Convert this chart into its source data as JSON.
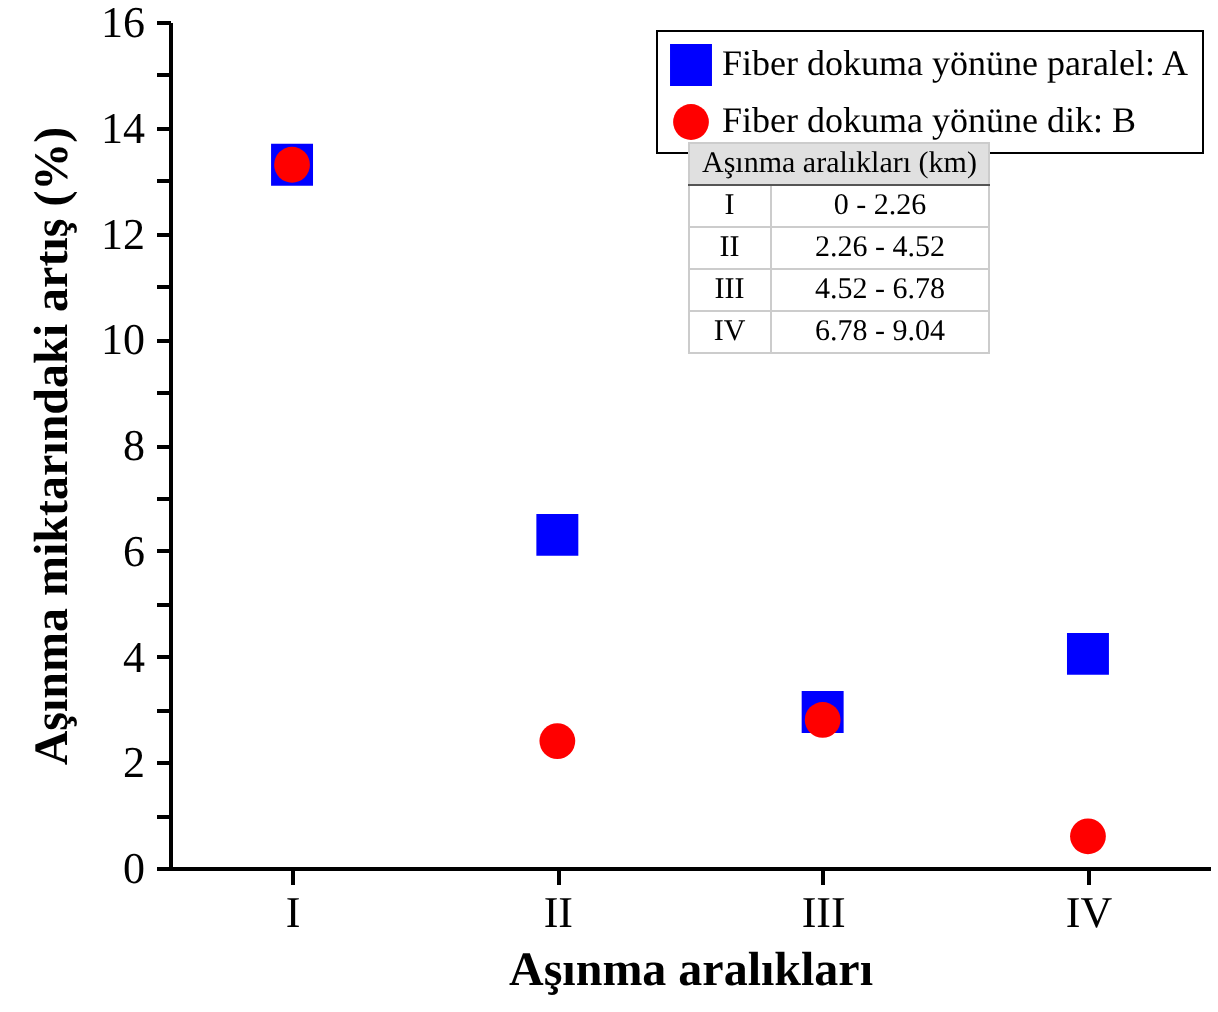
{
  "chart_data": {
    "type": "scatter",
    "xlabel": "Aşınma aralıkları",
    "ylabel": "Aşınma miktarındaki artış (%)",
    "categories": [
      "I",
      "II",
      "III",
      "IV"
    ],
    "series": [
      {
        "name": "Fiber dokuma yönüne paralel: A",
        "color": "#0000ff",
        "marker": "square",
        "values": [
          13.3,
          6.3,
          2.95,
          4.05
        ]
      },
      {
        "name": "Fiber dokuma yönüne dik: B",
        "color": "#ff0000",
        "marker": "circle",
        "values": [
          13.3,
          2.4,
          2.8,
          0.6
        ]
      }
    ],
    "ylim": [
      0,
      16
    ],
    "yticks": [
      0,
      {
        "value": 1,
        "label": null
      },
      2,
      {
        "value": 3,
        "label": null
      },
      4,
      {
        "value": 5,
        "label": null
      },
      6,
      {
        "value": 7,
        "label": null
      },
      8,
      {
        "value": 9,
        "label": null
      },
      10,
      {
        "value": 11,
        "label": null
      },
      12,
      {
        "value": 13,
        "label": null
      },
      14,
      {
        "value": 15,
        "label": null
      },
      16
    ],
    "legend": "top right",
    "annotations": [
      "Aşınma aralıkları (km)",
      "I",
      "0 - 2.26",
      "II",
      "2.26 - 4.52",
      "III",
      "4.52 - 6.78",
      "IV",
      "6.78 - 9.04"
    ]
  }
}
